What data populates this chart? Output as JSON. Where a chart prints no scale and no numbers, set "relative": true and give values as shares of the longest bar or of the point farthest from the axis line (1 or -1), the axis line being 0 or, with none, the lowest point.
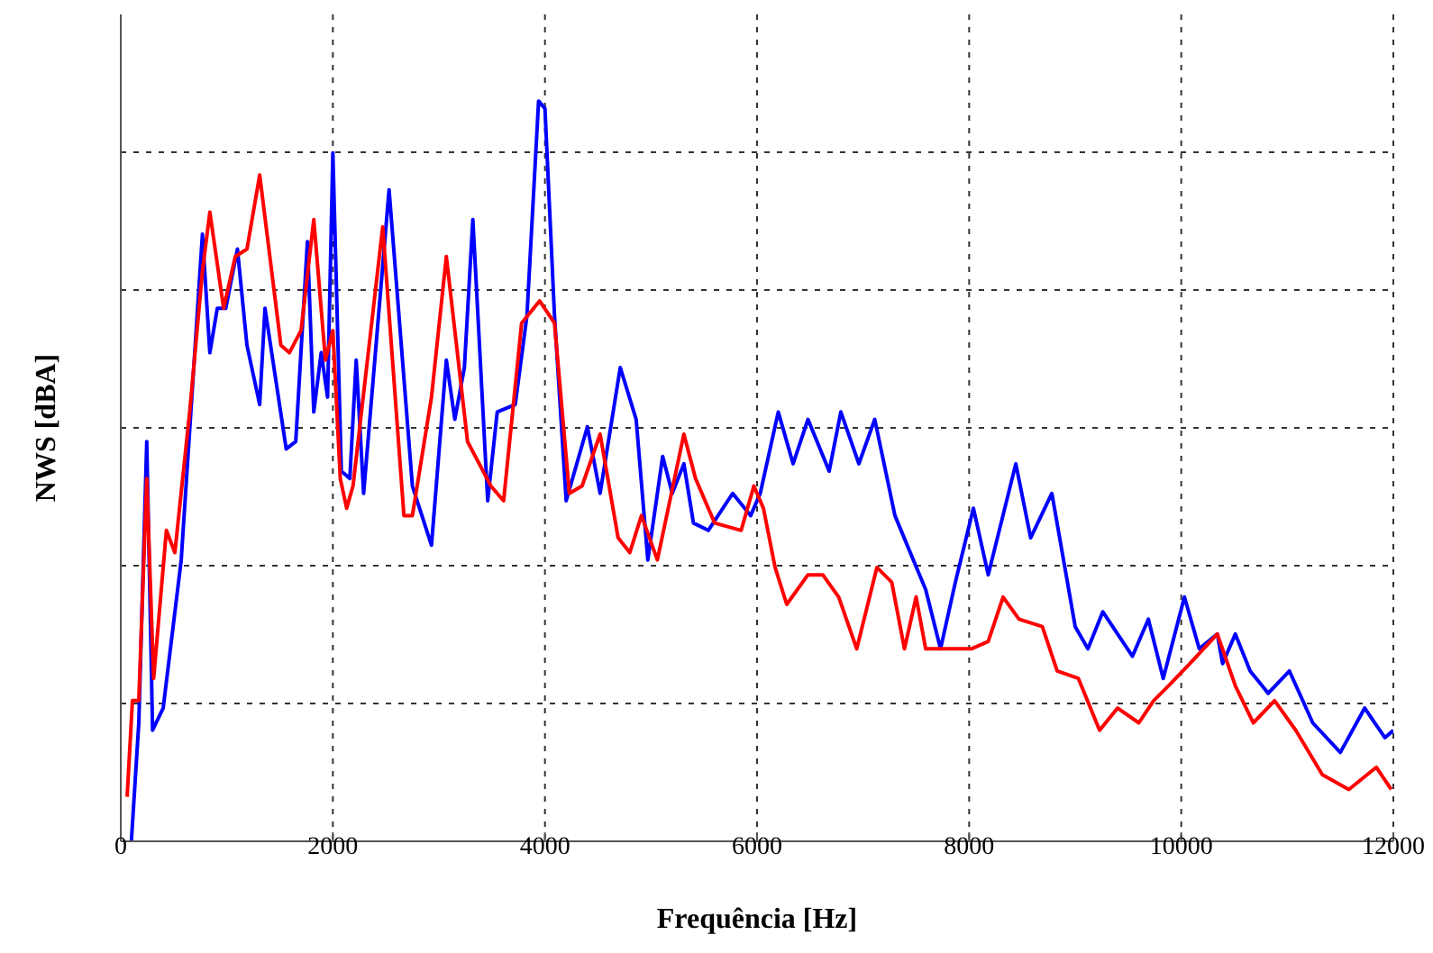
{
  "chart_data": {
    "type": "line",
    "relative": true,
    "xlabel": "Frequência [Hz]",
    "ylabel": "NWS [dBA]",
    "xlim": [
      0,
      12000
    ],
    "xticks": [
      0,
      2000,
      4000,
      6000,
      8000,
      10000,
      12000
    ],
    "grid": true,
    "line_style": "solid",
    "marker": "none",
    "series": [
      {
        "color": "#0000ff",
        "x": [
          100,
          170,
          245,
          300,
          400,
          570,
          770,
          840,
          910,
          990,
          1100,
          1190,
          1310,
          1360,
          1560,
          1650,
          1760,
          1820,
          1890,
          1950,
          2000,
          2080,
          2160,
          2220,
          2290,
          2530,
          2750,
          2930,
          3070,
          3150,
          3240,
          3320,
          3460,
          3550,
          3720,
          3830,
          3940,
          4000,
          4090,
          4200,
          4400,
          4520,
          4710,
          4860,
          4970,
          5110,
          5200,
          5310,
          5400,
          5540,
          5770,
          5940,
          6030,
          6200,
          6340,
          6480,
          6680,
          6790,
          6960,
          7110,
          7300,
          7590,
          7730,
          7870,
          8040,
          8180,
          8440,
          8580,
          8780,
          9000,
          9120,
          9260,
          9540,
          9690,
          9830,
          10030,
          10170,
          10340,
          10390,
          10510,
          10650,
          10820,
          11020,
          11240,
          11500,
          11730,
          11920,
          12000
        ],
        "values": [
          0.0,
          0.16,
          0.54,
          0.15,
          0.18,
          0.38,
          0.82,
          0.66,
          0.72,
          0.72,
          0.8,
          0.67,
          0.59,
          0.72,
          0.53,
          0.54,
          0.81,
          0.58,
          0.66,
          0.6,
          0.93,
          0.5,
          0.49,
          0.65,
          0.47,
          0.88,
          0.48,
          0.4,
          0.65,
          0.57,
          0.64,
          0.84,
          0.46,
          0.58,
          0.59,
          0.71,
          1.0,
          0.99,
          0.71,
          0.46,
          0.56,
          0.47,
          0.64,
          0.57,
          0.38,
          0.52,
          0.47,
          0.51,
          0.43,
          0.42,
          0.47,
          0.44,
          0.47,
          0.58,
          0.51,
          0.57,
          0.5,
          0.58,
          0.51,
          0.57,
          0.44,
          0.34,
          0.26,
          0.35,
          0.45,
          0.36,
          0.51,
          0.41,
          0.47,
          0.29,
          0.26,
          0.31,
          0.25,
          0.3,
          0.22,
          0.33,
          0.26,
          0.28,
          0.24,
          0.28,
          0.23,
          0.2,
          0.23,
          0.16,
          0.12,
          0.18,
          0.14,
          0.15
        ]
      },
      {
        "color": "#ff0000",
        "x": [
          60,
          110,
          170,
          245,
          310,
          430,
          510,
          650,
          770,
          840,
          970,
          1080,
          1190,
          1310,
          1510,
          1590,
          1700,
          1820,
          1930,
          2000,
          2070,
          2130,
          2190,
          2470,
          2670,
          2750,
          2930,
          3070,
          3270,
          3490,
          3610,
          3780,
          3950,
          4090,
          4230,
          4350,
          4520,
          4690,
          4800,
          4910,
          5060,
          5310,
          5420,
          5600,
          5850,
          5970,
          6060,
          6170,
          6280,
          6480,
          6620,
          6770,
          6940,
          7130,
          7270,
          7390,
          7500,
          7590,
          7820,
          8020,
          8180,
          8320,
          8470,
          8690,
          8830,
          9030,
          9230,
          9400,
          9600,
          9740,
          9880,
          10080,
          10340,
          10510,
          10680,
          10880,
          11080,
          11330,
          11580,
          11840,
          11980
        ],
        "values": [
          0.06,
          0.19,
          0.19,
          0.49,
          0.22,
          0.42,
          0.39,
          0.58,
          0.77,
          0.85,
          0.72,
          0.79,
          0.8,
          0.9,
          0.67,
          0.66,
          0.69,
          0.84,
          0.65,
          0.69,
          0.49,
          0.45,
          0.48,
          0.83,
          0.44,
          0.44,
          0.6,
          0.79,
          0.54,
          0.48,
          0.46,
          0.7,
          0.73,
          0.7,
          0.47,
          0.48,
          0.55,
          0.41,
          0.39,
          0.44,
          0.38,
          0.55,
          0.49,
          0.43,
          0.42,
          0.48,
          0.45,
          0.37,
          0.32,
          0.36,
          0.36,
          0.33,
          0.26,
          0.37,
          0.35,
          0.26,
          0.33,
          0.26,
          0.26,
          0.26,
          0.27,
          0.33,
          0.3,
          0.29,
          0.23,
          0.22,
          0.15,
          0.18,
          0.16,
          0.19,
          0.21,
          0.24,
          0.28,
          0.21,
          0.16,
          0.19,
          0.15,
          0.09,
          0.07,
          0.1,
          0.07
        ]
      }
    ]
  }
}
